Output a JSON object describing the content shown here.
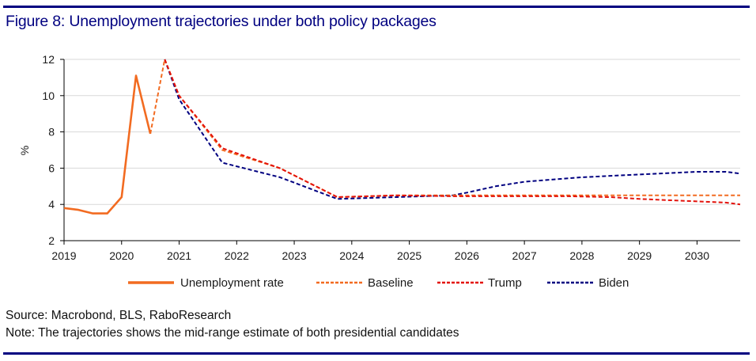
{
  "title": "Figure 8: Unemployment trajectories under both policy packages",
  "footer": {
    "source": "Source: Macrobond, BLS, RaboResearch",
    "note": "Note: The trajectories shows the mid-range estimate of both presidential candidates"
  },
  "colors": {
    "frame": "#000080",
    "unemployment": "#f26b21",
    "baseline": "#f26b21",
    "trump": "#e3120b",
    "biden": "#000080",
    "grid": "#d9d9d9",
    "axis": "#000000"
  },
  "chart_data": {
    "type": "line",
    "title": "Figure 8: Unemployment trajectories under both policy packages",
    "xlabel": "",
    "ylabel": "%",
    "xlim": [
      2019,
      2030.75
    ],
    "ylim": [
      2,
      12
    ],
    "grid": true,
    "legend_position": "bottom",
    "x_ticks": [
      "2019",
      "2020",
      "2021",
      "2022",
      "2023",
      "2024",
      "2025",
      "2026",
      "2027",
      "2028",
      "2029",
      "2030"
    ],
    "y_ticks": [
      "2",
      "4",
      "6",
      "8",
      "10",
      "12"
    ],
    "series": [
      {
        "name": "Unemployment rate",
        "style": "solid",
        "x": [
          2019.0,
          2019.25,
          2019.5,
          2019.75,
          2020.0,
          2020.25,
          2020.5
        ],
        "values": [
          3.8,
          3.7,
          3.5,
          3.5,
          4.4,
          11.1,
          7.9
        ]
      },
      {
        "name": "Baseline",
        "style": "dashed",
        "x": [
          2020.5,
          2020.75,
          2021.0,
          2021.75,
          2022.75,
          2023.75,
          2024.75,
          2025.75,
          2026.75,
          2027.75,
          2028.75,
          2029.75,
          2030.75
        ],
        "values": [
          7.9,
          12.0,
          10.0,
          7.0,
          6.0,
          4.4,
          4.5,
          4.5,
          4.5,
          4.5,
          4.5,
          4.5,
          4.5
        ]
      },
      {
        "name": "Trump",
        "style": "dashed",
        "x": [
          2020.75,
          2021.0,
          2021.75,
          2022.75,
          2023.75,
          2024.75,
          2025.75,
          2026.75,
          2027.75,
          2028.5,
          2029.0,
          2029.75,
          2030.5,
          2030.75
        ],
        "values": [
          12.0,
          10.0,
          7.1,
          6.0,
          4.4,
          4.5,
          4.45,
          4.45,
          4.45,
          4.4,
          4.3,
          4.2,
          4.1,
          4.0
        ]
      },
      {
        "name": "Biden",
        "style": "dashed",
        "x": [
          2020.75,
          2021.0,
          2021.75,
          2022.75,
          2023.75,
          2024.75,
          2025.75,
          2026.0,
          2026.5,
          2027.0,
          2028.0,
          2029.0,
          2030.0,
          2030.5,
          2030.75
        ],
        "values": [
          12.0,
          9.8,
          6.3,
          5.5,
          4.3,
          4.4,
          4.5,
          4.65,
          5.0,
          5.25,
          5.5,
          5.65,
          5.8,
          5.8,
          5.7
        ]
      }
    ]
  }
}
